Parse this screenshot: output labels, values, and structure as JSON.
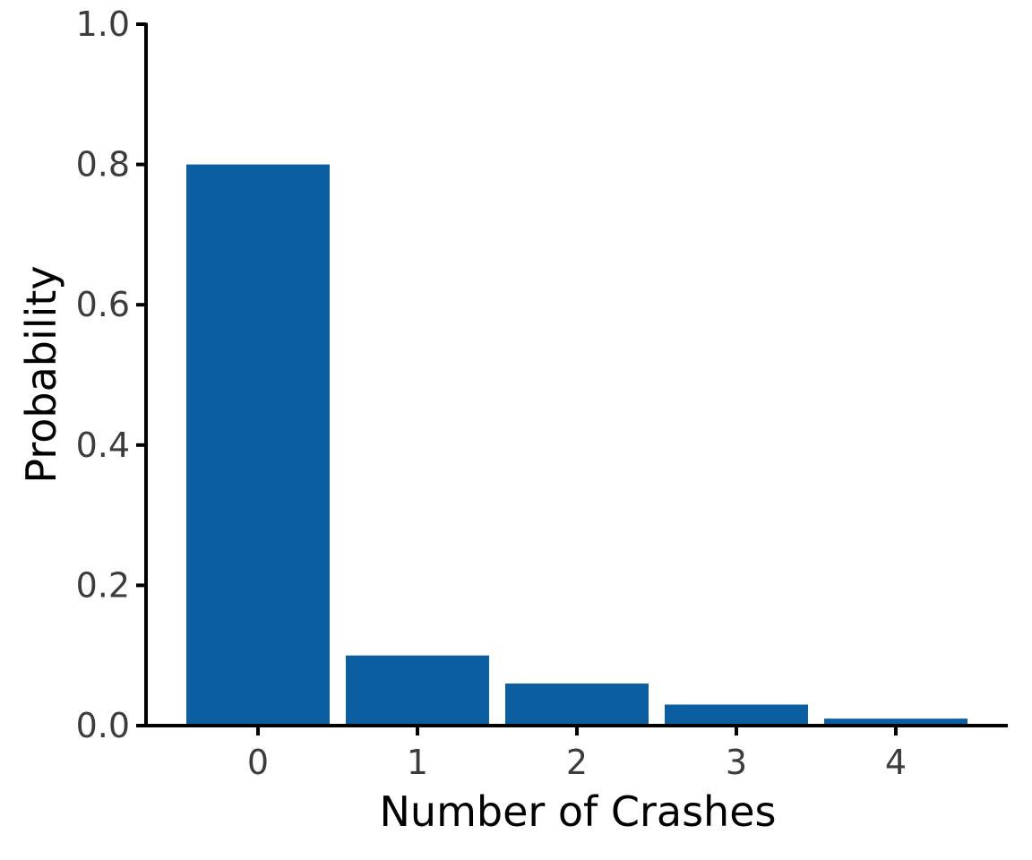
{
  "chart_data": {
    "type": "bar",
    "title": "",
    "xlabel": "Number of Crashes",
    "ylabel": "Probability",
    "categories": [
      "0",
      "1",
      "2",
      "3",
      "4"
    ],
    "values": [
      0.8,
      0.1,
      0.06,
      0.03,
      0.01
    ],
    "ylim": [
      0,
      1.0
    ],
    "yticks": [
      "0.0",
      "0.2",
      "0.4",
      "0.6",
      "0.8",
      "1.0"
    ],
    "grid": false,
    "bar_color": "#0b5ea0",
    "axis_color": "#000000"
  }
}
